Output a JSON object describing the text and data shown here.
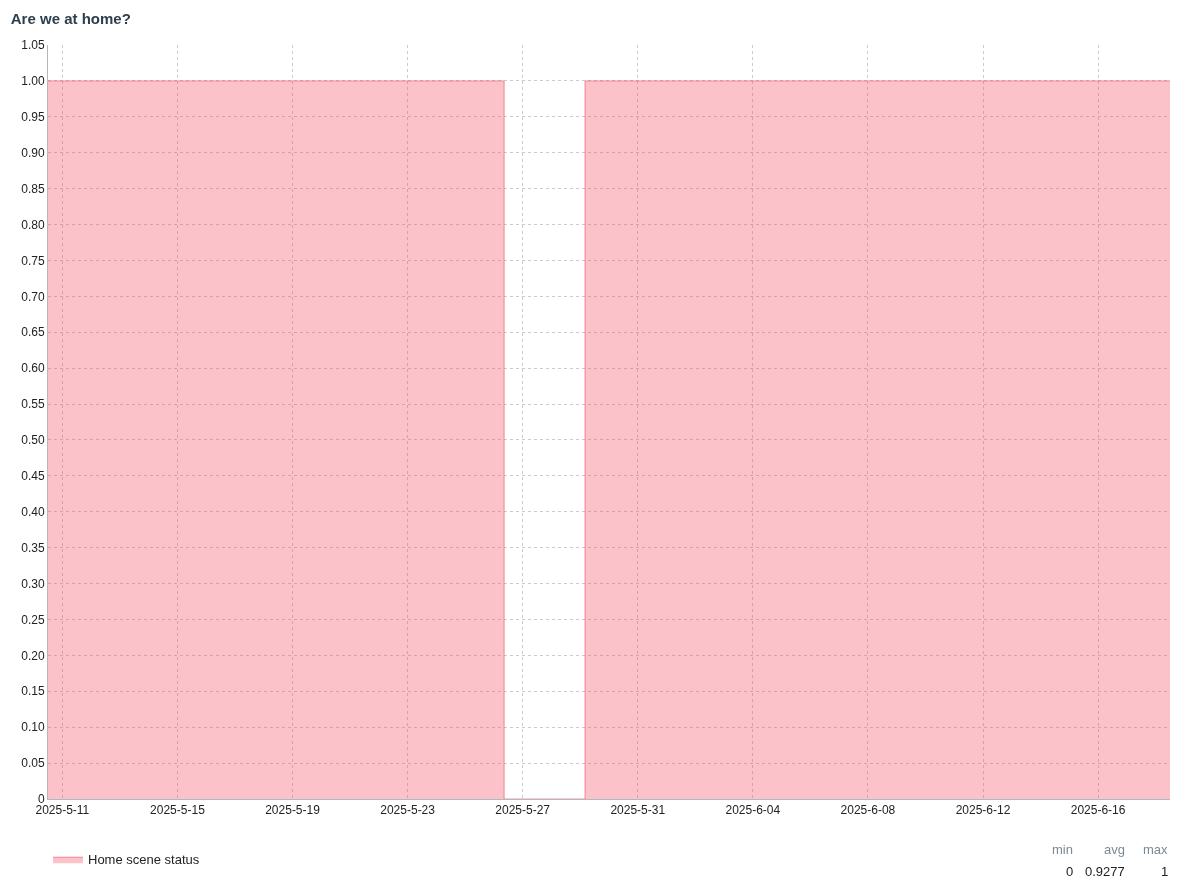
{
  "chart_data": {
    "type": "area",
    "title": "Are we at home?",
    "x": [
      "2025-05-10T12:00",
      "2025-05-26T08:30",
      "2025-05-29T04:00",
      "2025-06-18T12:00"
    ],
    "series": [
      {
        "name": "Home scene status",
        "color": "#f2495c",
        "values": [
          1,
          0,
          1,
          1
        ]
      }
    ],
    "xlim": [
      "2025-05-10T12:00",
      "2025-06-18T12:00"
    ],
    "xticks": [
      {
        "value": "2025-05-11",
        "label": "2025-5-11"
      },
      {
        "value": "2025-05-15",
        "label": "2025-5-15"
      },
      {
        "value": "2025-05-19",
        "label": "2025-5-19"
      },
      {
        "value": "2025-05-23",
        "label": "2025-5-23"
      },
      {
        "value": "2025-05-27",
        "label": "2025-5-27"
      },
      {
        "value": "2025-05-31",
        "label": "2025-5-31"
      },
      {
        "value": "2025-06-04",
        "label": "2025-6-04"
      },
      {
        "value": "2025-06-08",
        "label": "2025-6-08"
      },
      {
        "value": "2025-06-12",
        "label": "2025-6-12"
      },
      {
        "value": "2025-06-16",
        "label": "2025-6-16"
      }
    ],
    "ylim": [
      0,
      1.05
    ],
    "yticks": [
      0,
      {
        "value": 0.05,
        "label": "0.05"
      },
      {
        "value": 0.1,
        "label": "0.10"
      },
      {
        "value": 0.15,
        "label": "0.15"
      },
      {
        "value": 0.2,
        "label": "0.20"
      },
      {
        "value": 0.25,
        "label": "0.25"
      },
      {
        "value": 0.3,
        "label": "0.30"
      },
      {
        "value": 0.35,
        "label": "0.35"
      },
      {
        "value": 0.4,
        "label": "0.40"
      },
      {
        "value": 0.45,
        "label": "0.45"
      },
      {
        "value": 0.5,
        "label": "0.50"
      },
      {
        "value": 0.55,
        "label": "0.55"
      },
      {
        "value": 0.6,
        "label": "0.60"
      },
      {
        "value": 0.65,
        "label": "0.65"
      },
      {
        "value": 0.7,
        "label": "0.70"
      },
      {
        "value": 0.75,
        "label": "0.75"
      },
      {
        "value": 0.8,
        "label": "0.80"
      },
      {
        "value": 0.85,
        "label": "0.85"
      },
      {
        "value": 0.9,
        "label": "0.90"
      },
      {
        "value": 0.95,
        "label": "0.95"
      },
      {
        "value": 1,
        "label": "1.00"
      },
      {
        "value": 1.05,
        "label": "1.05"
      }
    ],
    "grid": true,
    "legend": "bottom left",
    "line_style": "solid",
    "annotations": [
      "min",
      "avg",
      "max",
      "0",
      "0.9277",
      "1"
    ]
  }
}
